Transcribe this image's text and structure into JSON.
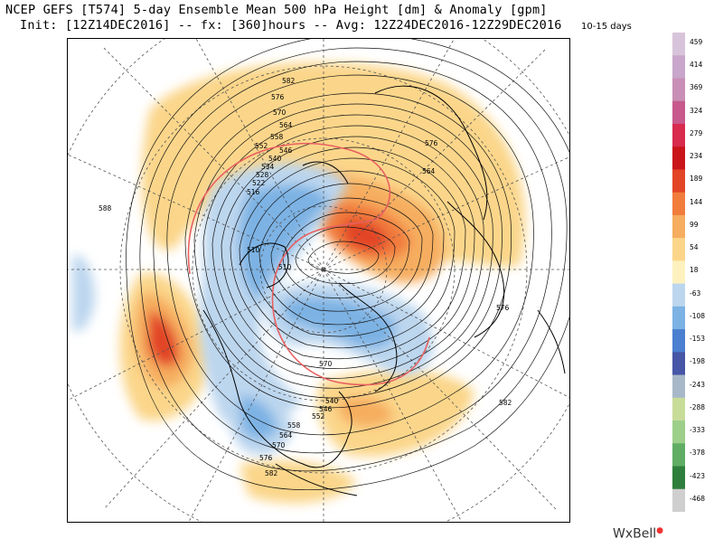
{
  "header": {
    "line1": "NCEP GEFS [T574] 5-day Ensemble Mean 500 hPa Height [dm] & Anomaly [gpm]",
    "line2": "Init: [12Z14DEC2016] -- fx: [360]hours -- Avg: 12Z24DEC2016-12Z29DEC2016",
    "period": "10-15 days"
  },
  "colorbar": {
    "labels": [
      "459",
      "414",
      "369",
      "324",
      "279",
      "234",
      "189",
      "144",
      "99",
      "54",
      "18",
      "-63",
      "-108",
      "-153",
      "-198",
      "-243",
      "-288",
      "-333",
      "-378",
      "-423",
      "-468"
    ],
    "colors": [
      "#d8c4da",
      "#c9a6cb",
      "#c98fb6",
      "#c7598c",
      "#d82b4d",
      "#c9141a",
      "#e24426",
      "#f17c3c",
      "#f6ad5f",
      "#fbd68a",
      "#fdf1bf",
      "#bcd6ee",
      "#7cb2e4",
      "#4b7fcf",
      "#4756a6",
      "#a8b8c8",
      "#c8dc9a",
      "#9ccf8a",
      "#5fae64",
      "#2e7f3c",
      "#cfcfcf"
    ]
  },
  "contour_labels": [
    "582",
    "576",
    "570",
    "564",
    "558",
    "552",
    "546",
    "540",
    "534",
    "528",
    "522",
    "516",
    "510",
    "510",
    "588",
    "576",
    "564",
    "570",
    "540",
    "546",
    "552",
    "558",
    "564",
    "570",
    "576",
    "582",
    "582",
    "576"
  ],
  "logo": {
    "text": "WxBell"
  }
}
